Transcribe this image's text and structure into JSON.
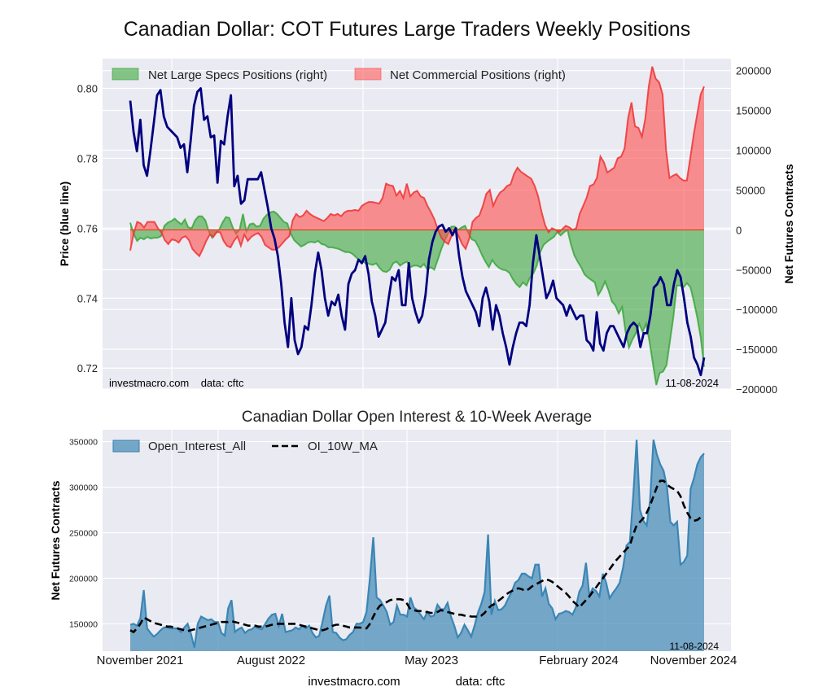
{
  "title": "Canadian Dollar: COT Futures Large Traders Weekly Positions",
  "subtitle": "Canadian Dollar Open Interest & 10-Week Average",
  "footer": {
    "site": "investmacro.com",
    "source": "data: cftc"
  },
  "chart_data": [
    {
      "type": "area",
      "title": "Canadian Dollar: COT Futures Large Traders Weekly Positions",
      "ylabel_left": "Price (blue line)",
      "ylabel_right": "Net Futures Contracts",
      "ylim_left": [
        0.714,
        0.8085
      ],
      "ylim_right": [
        -200000,
        215000
      ],
      "yticks_left": [
        "0.80",
        "0.78",
        "0.76",
        "0.74",
        "0.72"
      ],
      "yticks_right": [
        "200000",
        "150000",
        "100000",
        "50000",
        "0",
        "−50000",
        "−100000",
        "−150000",
        "−200000"
      ],
      "grid": true,
      "legend_position": "top-left",
      "annotation_left": "investmacro.com    data: cftc",
      "annotation_right": "11-08-2024",
      "series": [
        {
          "name": "Net Large Specs Positions (right)",
          "color": "#2ca02c",
          "values": [
            9000,
            -5000,
            -14000,
            -10000,
            -12000,
            -9000,
            -11000,
            -10000,
            -10000,
            -8000,
            5000,
            9000,
            11000,
            14000,
            10000,
            7000,
            13000,
            3000,
            2000,
            12000,
            17000,
            17000,
            12000,
            -2000,
            -10000,
            -4000,
            0,
            9000,
            16000,
            15000,
            3000,
            -5000,
            0,
            20000,
            -2000,
            7000,
            8000,
            4000,
            5000,
            14000,
            19000,
            22000,
            23000,
            20000,
            15000,
            10000,
            8000,
            -5000,
            -13000,
            -17000,
            -21000,
            -19000,
            -16000,
            -15000,
            -16000,
            -14000,
            -18000,
            -19000,
            -22000,
            -22000,
            -23000,
            -24000,
            -26000,
            -28000,
            -28000,
            -30000,
            -34000,
            -38000,
            -40000,
            -42000,
            -43000,
            -44000,
            -42000,
            -48000,
            -52000,
            -53000,
            -50000,
            -42000,
            -40000,
            -45000,
            -42000,
            -40000,
            -47000,
            -45000,
            -45000,
            -47000,
            -43000,
            -50000,
            -47000,
            -50000,
            -38000,
            -25000,
            -14000,
            -5000,
            4000,
            4000,
            0,
            3000,
            5000,
            -4000,
            -12000,
            -14000,
            -22000,
            -32000,
            -40000,
            -47000,
            -38000,
            -44000,
            -48000,
            -50000,
            -51000,
            -54000,
            -62000,
            -68000,
            -72000,
            -66000,
            -70000,
            -60000,
            -55000,
            -45000,
            -28000,
            -19000,
            -15000,
            -12000,
            -9000,
            -3000,
            -7000,
            -3000,
            0,
            -18000,
            -32000,
            -40000,
            -47000,
            -56000,
            -60000,
            -63000,
            -66000,
            -82000,
            -75000,
            -65000,
            -76000,
            -90000,
            -95000,
            -105000,
            -97000,
            -128000,
            -148000,
            -138000,
            -130000,
            -118000,
            -128000,
            -118000,
            -140000,
            -168000,
            -195000,
            -180000,
            -178000,
            -170000,
            -140000,
            -110000,
            -70000,
            -70000,
            -72000,
            -67000,
            -72000,
            -90000,
            -110000,
            -135000,
            -172000
          ]
        },
        {
          "name": "Net Commercial Positions (right)",
          "color": "#ff4d4d",
          "values": [
            -26000,
            -5000,
            10000,
            8000,
            3000,
            10000,
            10000,
            10000,
            2000,
            -3000,
            -13000,
            -18000,
            -12000,
            -13000,
            -16000,
            -10000,
            -8000,
            -13000,
            -24000,
            -29000,
            -33000,
            -24000,
            -14000,
            -6000,
            -9000,
            -3000,
            -3000,
            -14000,
            -20000,
            -22000,
            -14000,
            -8000,
            -20000,
            -6000,
            -14000,
            -9000,
            -6000,
            -4000,
            -9000,
            -19000,
            -22000,
            -25000,
            -25000,
            -22000,
            -17000,
            -12000,
            -8000,
            12000,
            20000,
            16000,
            18000,
            24000,
            20000,
            17000,
            15000,
            13000,
            11000,
            15000,
            20000,
            18000,
            20000,
            17000,
            22000,
            24000,
            24000,
            25000,
            24000,
            30000,
            33000,
            35000,
            35000,
            34000,
            33000,
            40000,
            58000,
            56000,
            55000,
            43000,
            49000,
            40000,
            58000,
            42000,
            47000,
            49000,
            42000,
            40000,
            30000,
            22000,
            13000,
            0,
            -10000,
            -15000,
            -18000,
            -7000,
            0,
            -8000,
            -18000,
            -24000,
            -12000,
            10000,
            15000,
            18000,
            30000,
            45000,
            50000,
            30000,
            40000,
            47000,
            50000,
            55000,
            57000,
            70000,
            78000,
            73000,
            70000,
            67000,
            64000,
            55000,
            42000,
            22000,
            6000,
            -3000,
            2000,
            0,
            -3000,
            1000,
            5000,
            3000,
            0,
            2000,
            20000,
            30000,
            40000,
            55000,
            57000,
            65000,
            92000,
            85000,
            72000,
            75000,
            78000,
            90000,
            92000,
            102000,
            140000,
            160000,
            130000,
            128000,
            117000,
            140000,
            180000,
            205000,
            190000,
            185000,
            170000,
            100000,
            65000,
            68000,
            70000,
            65000,
            62000,
            62000,
            90000,
            120000,
            145000,
            170000,
            180000
          ]
        },
        {
          "name": "Price (blue line)",
          "color": "#000080",
          "values": [
            0.7965,
            0.7875,
            0.782,
            0.791,
            0.778,
            0.775,
            0.782,
            0.79,
            0.798,
            0.7995,
            0.792,
            0.789,
            0.788,
            0.787,
            0.786,
            0.783,
            0.784,
            0.776,
            0.785,
            0.795,
            0.799,
            0.8,
            0.791,
            0.792,
            0.786,
            0.7865,
            0.773,
            0.785,
            0.784,
            0.792,
            0.798,
            0.772,
            0.775,
            0.767,
            0.768,
            0.774,
            0.774,
            0.774,
            0.774,
            0.776,
            0.771,
            0.766,
            0.76,
            0.757,
            0.752,
            0.744,
            0.733,
            0.726,
            0.74,
            0.728,
            0.724,
            0.726,
            0.732,
            0.731,
            0.738,
            0.747,
            0.753,
            0.748,
            0.74,
            0.735,
            0.739,
            0.738,
            0.741,
            0.735,
            0.731,
            0.744,
            0.747,
            0.748,
            0.751,
            0.75,
            0.752,
            0.747,
            0.739,
            0.735,
            0.729,
            0.731,
            0.733,
            0.74,
            0.746,
            0.745,
            0.748,
            0.738,
            0.738,
            0.75,
            0.74,
            0.736,
            0.733,
            0.735,
            0.741,
            0.751,
            0.756,
            0.759,
            0.7605,
            0.761,
            0.759,
            0.76,
            0.758,
            0.76,
            0.752,
            0.746,
            0.742,
            0.74,
            0.738,
            0.736,
            0.732,
            0.74,
            0.743,
            0.739,
            0.731,
            0.738,
            0.735,
            0.73,
            0.726,
            0.721,
            0.726,
            0.73,
            0.733,
            0.733,
            0.732,
            0.738,
            0.75,
            0.758,
            0.752,
            0.746,
            0.74,
            0.742,
            0.745,
            0.74,
            0.739,
            0.738,
            0.735,
            0.738,
            0.736,
            0.734,
            0.735,
            0.735,
            0.728,
            0.727,
            0.725,
            0.736,
            0.727,
            0.725,
            0.73,
            0.732,
            0.732,
            0.73,
            0.728,
            0.726,
            0.73,
            0.732,
            0.733,
            0.732,
            0.726,
            0.73,
            0.73,
            0.735,
            0.743,
            0.744,
            0.746,
            0.744,
            0.738,
            0.738,
            0.744,
            0.748,
            0.746,
            0.74,
            0.733,
            0.729,
            0.723,
            0.721,
            0.718,
            0.723
          ]
        }
      ]
    },
    {
      "type": "area",
      "title": "Canadian Dollar Open Interest & 10-Week Average",
      "ylabel": "Net Futures Contracts",
      "ylim": [
        120000,
        363000
      ],
      "yticks": [
        "350000",
        "300000",
        "250000",
        "200000",
        "150000"
      ],
      "xticks": [
        "November 2021",
        "August 2022",
        "May 2023",
        "February 2024",
        "November 2024"
      ],
      "grid": true,
      "legend_position": "top-left",
      "annotation_right": "11-08-2024",
      "series": [
        {
          "name": "Open_Interest_All",
          "color": "#4c8fba",
          "values": [
            149000,
            150000,
            148000,
            156000,
            187000,
            145000,
            140000,
            136000,
            139000,
            143000,
            146000,
            146000,
            145000,
            145000,
            145000,
            141000,
            146000,
            150000,
            139000,
            124000,
            150000,
            158000,
            156000,
            154000,
            155000,
            152000,
            152000,
            140000,
            137000,
            167000,
            176000,
            141000,
            144000,
            146000,
            140000,
            143000,
            144000,
            147000,
            145000,
            144000,
            150000,
            156000,
            160000,
            161000,
            148000,
            161000,
            141000,
            142000,
            143000,
            146000,
            144000,
            148000,
            145000,
            148000,
            140000,
            135000,
            137000,
            153000,
            170000,
            181000,
            141000,
            140000,
            135000,
            132000,
            133000,
            138000,
            141000,
            150000,
            150000,
            152000,
            163000,
            200000,
            245000,
            179000,
            176000,
            170000,
            163000,
            149000,
            152000,
            170000,
            160000,
            160000,
            158000,
            179000,
            168000,
            165000,
            160000,
            155000,
            163000,
            158000,
            159000,
            171000,
            166000,
            166000,
            173000,
            158000,
            148000,
            135000,
            140000,
            149000,
            143000,
            136000,
            148000,
            162000,
            172000,
            185000,
            248000,
            160000,
            175000,
            165000,
            166000,
            170000,
            178000,
            185000,
            195000,
            198000,
            205000,
            205000,
            202000,
            200000,
            215000,
            215000,
            180000,
            189000,
            172000,
            167000,
            155000,
            161000,
            162000,
            164000,
            163000,
            160000,
            168000,
            185000,
            192000,
            217000,
            181000,
            189000,
            186000,
            180000,
            205000,
            195000,
            178000,
            184000,
            189000,
            195000,
            212000,
            236000,
            240000,
            290000,
            352000,
            275000,
            263000,
            258000,
            285000,
            352000,
            336000,
            325000,
            318000,
            300000,
            262000,
            258000,
            262000,
            215000,
            218000,
            225000,
            298000,
            310000,
            325000,
            333000,
            337000
          ]
        },
        {
          "name": "OI_10W_MA",
          "color": "#000000",
          "values": [
            143000,
            141000,
            145000,
            150000,
            157000,
            155000,
            153000,
            151000,
            150000,
            149000,
            148000,
            147000,
            147000,
            146000,
            145000,
            144000,
            143000,
            142000,
            143000,
            144000,
            145000,
            146000,
            147000,
            148000,
            149000,
            150000,
            151000,
            152000,
            152000,
            152000,
            153000,
            152000,
            151000,
            150000,
            149000,
            148000,
            148000,
            148000,
            147000,
            147000,
            147000,
            148000,
            149000,
            150000,
            150000,
            150000,
            150000,
            150000,
            150000,
            150000,
            149000,
            148000,
            147000,
            146000,
            145000,
            144000,
            143000,
            143000,
            144000,
            146000,
            148000,
            149000,
            149000,
            148000,
            147000,
            146000,
            146000,
            146000,
            146000,
            145000,
            145000,
            150000,
            158000,
            165000,
            170000,
            172000,
            174000,
            176000,
            177000,
            177000,
            177000,
            176000,
            172000,
            166000,
            165000,
            164000,
            164000,
            163000,
            163000,
            162000,
            162000,
            163000,
            165000,
            164000,
            163000,
            162000,
            161000,
            160000,
            160000,
            159000,
            159000,
            158000,
            158000,
            158000,
            159000,
            162000,
            167000,
            170000,
            172000,
            175000,
            178000,
            181000,
            184000,
            186000,
            188000,
            189000,
            188000,
            186000,
            188000,
            191000,
            193000,
            195000,
            197000,
            199000,
            198000,
            196000,
            193000,
            190000,
            187000,
            184000,
            180000,
            175000,
            172000,
            168000,
            172000,
            176000,
            180000,
            185000,
            190000,
            195000,
            200000,
            205000,
            210000,
            215000,
            220000,
            224000,
            228000,
            232000,
            236000,
            248000,
            258000,
            262000,
            266000,
            272000,
            280000,
            290000,
            300000,
            307000,
            307000,
            303000,
            300000,
            298000,
            296000,
            290000,
            280000,
            272000,
            266000,
            263000,
            264000,
            267000,
            268000
          ]
        }
      ]
    }
  ]
}
